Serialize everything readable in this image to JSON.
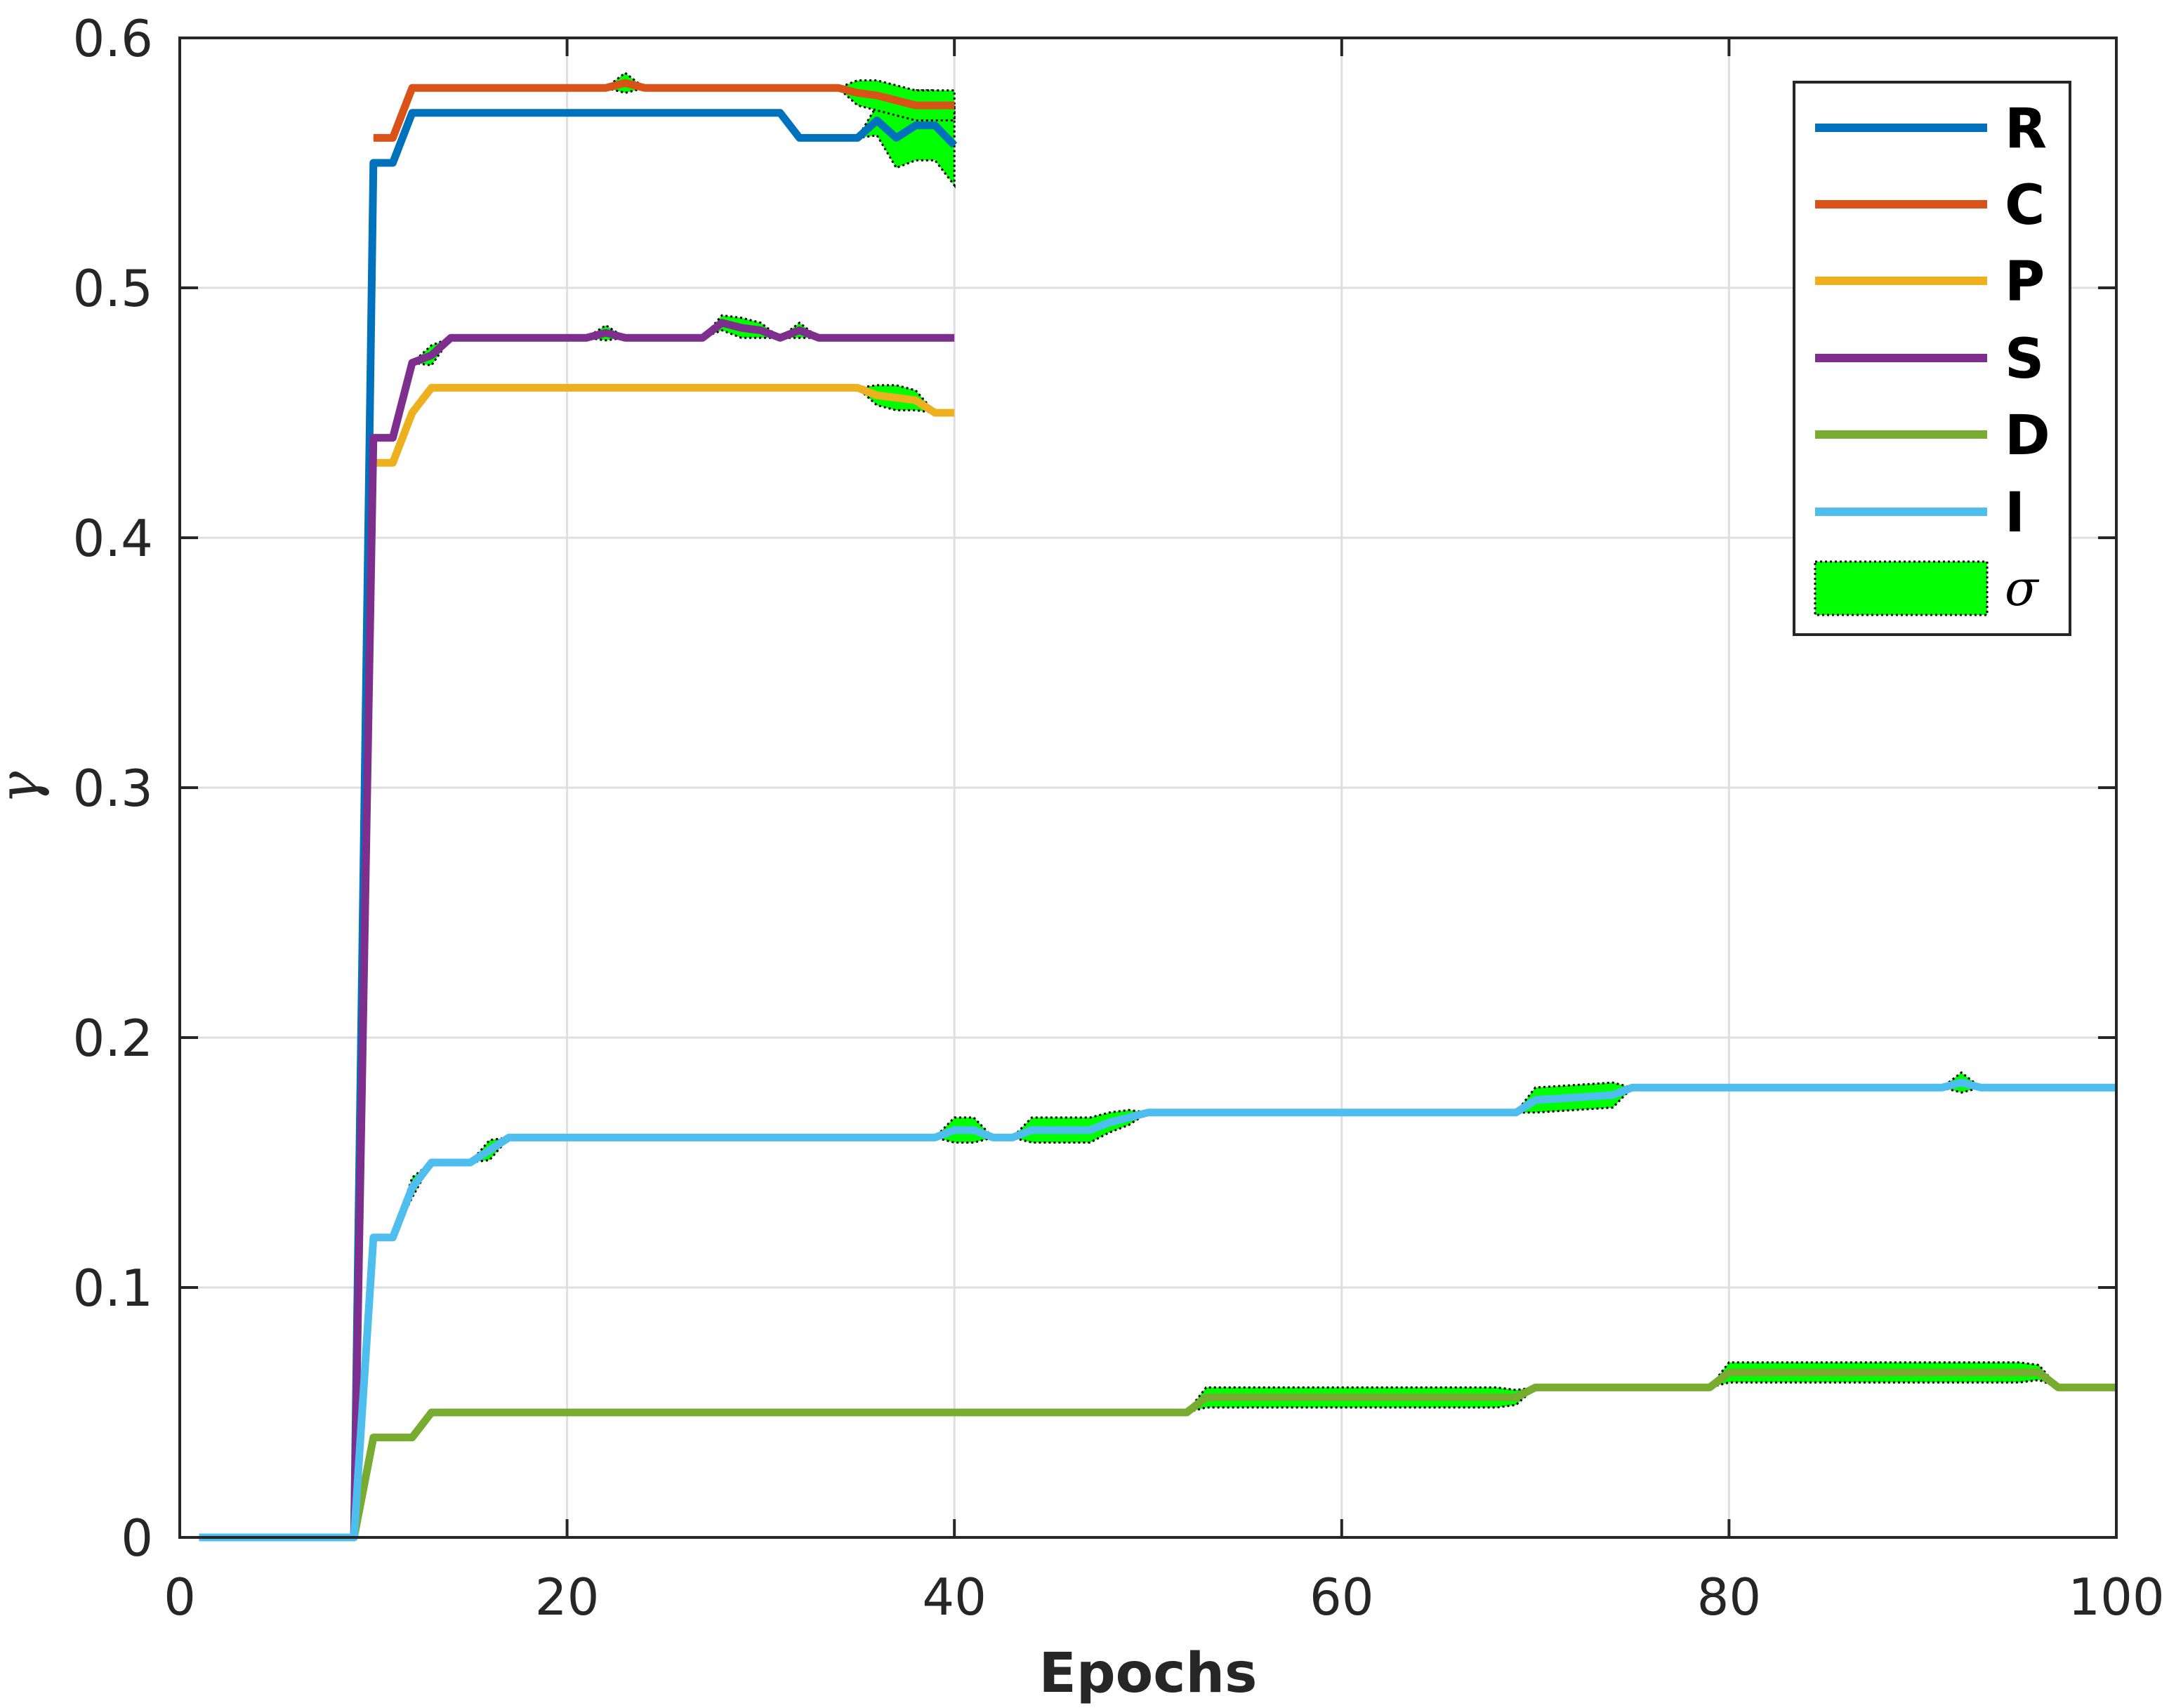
{
  "chart_data": {
    "type": "line",
    "title": "",
    "xlabel": "Epochs",
    "ylabel": "γ",
    "xlim": [
      0,
      100
    ],
    "ylim": [
      0,
      0.6
    ],
    "grid": true,
    "legend_position": "top-right",
    "x_ticks": [
      "0",
      "20",
      "40",
      "60",
      "80",
      "100"
    ],
    "y_ticks": [
      "0",
      "0.1",
      "0.2",
      "0.3",
      "0.4",
      "0.5",
      "0.6"
    ],
    "band_color": "#00ff00",
    "band_label": "σ",
    "series": [
      {
        "name": "R",
        "color": "#0072bd",
        "points": [
          [
            1,
            0
          ],
          [
            9,
            0
          ],
          [
            10,
            0.55
          ],
          [
            11,
            0.55
          ],
          [
            12,
            0.57
          ],
          [
            31,
            0.57
          ],
          [
            32,
            0.56
          ],
          [
            35,
            0.56
          ],
          [
            36,
            0.567
          ],
          [
            37,
            0.56
          ],
          [
            38,
            0.565
          ],
          [
            39,
            0.565
          ],
          [
            40,
            0.557
          ]
        ],
        "band": [
          [
            35,
            0
          ],
          [
            36,
            0.006
          ],
          [
            37,
            0.012
          ],
          [
            38,
            0.014
          ],
          [
            39,
            0.014
          ],
          [
            40,
            0.016
          ]
        ]
      },
      {
        "name": "C",
        "color": "#d95319",
        "points": [
          [
            10,
            0.56
          ],
          [
            11,
            0.56
          ],
          [
            12,
            0.58
          ],
          [
            22,
            0.58
          ],
          [
            23,
            0.582
          ],
          [
            24,
            0.58
          ],
          [
            34,
            0.58
          ],
          [
            35,
            0.578
          ],
          [
            36,
            0.577
          ],
          [
            37,
            0.575
          ],
          [
            38,
            0.573
          ],
          [
            40,
            0.573
          ]
        ],
        "band": [
          [
            22,
            0
          ],
          [
            23,
            0.004
          ],
          [
            24,
            0
          ],
          [
            34,
            0
          ],
          [
            35,
            0.005
          ],
          [
            36,
            0.006
          ],
          [
            37,
            0.006
          ],
          [
            38,
            0.006
          ],
          [
            40,
            0.006
          ]
        ]
      },
      {
        "name": "P",
        "color": "#edb120",
        "points": [
          [
            10,
            0.43
          ],
          [
            11,
            0.43
          ],
          [
            12,
            0.45
          ],
          [
            13,
            0.46
          ],
          [
            35,
            0.46
          ],
          [
            36,
            0.457
          ],
          [
            37,
            0.456
          ],
          [
            38,
            0.455
          ],
          [
            39,
            0.45
          ],
          [
            40,
            0.45
          ]
        ],
        "band": [
          [
            35,
            0
          ],
          [
            36,
            0.004
          ],
          [
            37,
            0.005
          ],
          [
            38,
            0.004
          ],
          [
            39,
            0
          ],
          [
            40,
            0
          ]
        ]
      },
      {
        "name": "S",
        "color": "#7e2f8e",
        "points": [
          [
            9,
            0
          ],
          [
            10,
            0.44
          ],
          [
            11,
            0.44
          ],
          [
            12,
            0.47
          ],
          [
            13,
            0.473
          ],
          [
            14,
            0.48
          ],
          [
            21,
            0.48
          ],
          [
            22,
            0.482
          ],
          [
            23,
            0.48
          ],
          [
            27,
            0.48
          ],
          [
            28,
            0.486
          ],
          [
            29,
            0.484
          ],
          [
            30,
            0.483
          ],
          [
            31,
            0.48
          ],
          [
            32,
            0.483
          ],
          [
            33,
            0.48
          ],
          [
            40,
            0.48
          ]
        ],
        "band": [
          [
            12,
            0
          ],
          [
            13,
            0.004
          ],
          [
            14,
            0
          ],
          [
            21,
            0
          ],
          [
            22,
            0.003
          ],
          [
            23,
            0
          ],
          [
            27,
            0
          ],
          [
            28,
            0.003
          ],
          [
            29,
            0.004
          ],
          [
            30,
            0.003
          ],
          [
            31,
            0
          ],
          [
            32,
            0.003
          ],
          [
            33,
            0
          ]
        ]
      },
      {
        "name": "D",
        "color": "#77ac30",
        "points": [
          [
            9,
            0
          ],
          [
            10,
            0.04
          ],
          [
            12,
            0.04
          ],
          [
            13,
            0.05
          ],
          [
            52,
            0.05
          ],
          [
            53,
            0.056
          ],
          [
            69,
            0.056
          ],
          [
            70,
            0.06
          ],
          [
            79,
            0.06
          ],
          [
            80,
            0.066
          ],
          [
            96,
            0.066
          ],
          [
            97,
            0.06
          ],
          [
            100,
            0.06
          ]
        ],
        "band": [
          [
            52,
            0
          ],
          [
            53,
            0.004
          ],
          [
            68,
            0.004
          ],
          [
            69,
            0.003
          ],
          [
            70,
            0
          ],
          [
            79,
            0
          ],
          [
            80,
            0.004
          ],
          [
            95,
            0.004
          ],
          [
            96,
            0.003
          ],
          [
            97,
            0
          ]
        ]
      },
      {
        "name": "I",
        "color": "#4dbeee",
        "points": [
          [
            1,
            0
          ],
          [
            9,
            0
          ],
          [
            10,
            0.12
          ],
          [
            11,
            0.12
          ],
          [
            12,
            0.14
          ],
          [
            13,
            0.15
          ],
          [
            15,
            0.15
          ],
          [
            16,
            0.155
          ],
          [
            17,
            0.16
          ],
          [
            39,
            0.16
          ],
          [
            40,
            0.163
          ],
          [
            41,
            0.163
          ],
          [
            42,
            0.16
          ],
          [
            43,
            0.16
          ],
          [
            44,
            0.163
          ],
          [
            47,
            0.163
          ],
          [
            48,
            0.166
          ],
          [
            49,
            0.168
          ],
          [
            50,
            0.17
          ],
          [
            69,
            0.17
          ],
          [
            70,
            0.175
          ],
          [
            74,
            0.177
          ],
          [
            75,
            0.18
          ],
          [
            91,
            0.18
          ],
          [
            92,
            0.182
          ],
          [
            93,
            0.18
          ],
          [
            100,
            0.18
          ]
        ],
        "band": [
          [
            11,
            0
          ],
          [
            12,
            0.004
          ],
          [
            13,
            0
          ],
          [
            15,
            0
          ],
          [
            16,
            0.004
          ],
          [
            17,
            0
          ],
          [
            39,
            0
          ],
          [
            40,
            0.005
          ],
          [
            41,
            0.005
          ],
          [
            42,
            0
          ],
          [
            43,
            0
          ],
          [
            44,
            0.005
          ],
          [
            47,
            0.005
          ],
          [
            48,
            0.004
          ],
          [
            49,
            0.003
          ],
          [
            50,
            0
          ],
          [
            69,
            0
          ],
          [
            70,
            0.005
          ],
          [
            74,
            0.005
          ],
          [
            75,
            0
          ],
          [
            91,
            0
          ],
          [
            92,
            0.004
          ],
          [
            93,
            0
          ]
        ]
      }
    ]
  }
}
